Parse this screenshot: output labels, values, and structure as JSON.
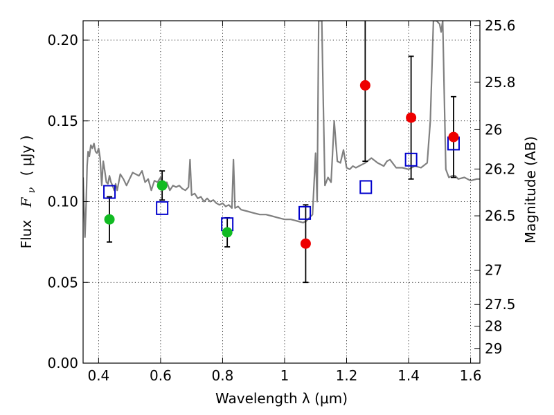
{
  "chart_data": {
    "type": "scatter",
    "xlabel": "Wavelength  λ (μm)",
    "ylabel_left_prefix": "Flux",
    "ylabel_left_symbol": "F",
    "ylabel_left_symbol_sub": "ν",
    "ylabel_left_unit": "( μJy )",
    "ylabel_right": "Magnitude (AB)",
    "xlim": [
      0.35,
      1.63
    ],
    "ylim": [
      0.0,
      0.212
    ],
    "grid": true,
    "x_ticks": [
      {
        "value": 0.4,
        "label": "0.4"
      },
      {
        "value": 0.6,
        "label": "0.6"
      },
      {
        "value": 0.8,
        "label": "0.8"
      },
      {
        "value": 1.0,
        "label": "1"
      },
      {
        "value": 1.2,
        "label": "1.2"
      },
      {
        "value": 1.4,
        "label": "1.4"
      },
      {
        "value": 1.6,
        "label": "1.6"
      }
    ],
    "y_ticks": [
      {
        "value": 0.0,
        "label": "0.00"
      },
      {
        "value": 0.05,
        "label": "0.05"
      },
      {
        "value": 0.1,
        "label": "0.10"
      },
      {
        "value": 0.15,
        "label": "0.15"
      },
      {
        "value": 0.2,
        "label": "0.20"
      }
    ],
    "right_ticks": [
      {
        "label": "25.6",
        "flux": 0.2091
      },
      {
        "label": "25.8",
        "flux": 0.1739
      },
      {
        "label": "26",
        "flux": 0.1446
      },
      {
        "label": "26.2",
        "flux": 0.1202
      },
      {
        "label": "26.5",
        "flux": 0.0912
      },
      {
        "label": "27",
        "flux": 0.0575
      },
      {
        "label": "27.5",
        "flux": 0.0363
      },
      {
        "label": "28",
        "flux": 0.0229
      },
      {
        "label": "29",
        "flux": 0.0091
      }
    ],
    "series": [
      {
        "kind": "line",
        "color": "#808080",
        "x": [
          0.35,
          0.356,
          0.36,
          0.363,
          0.366,
          0.37,
          0.375,
          0.38,
          0.385,
          0.39,
          0.395,
          0.4,
          0.405,
          0.41,
          0.415,
          0.42,
          0.425,
          0.43,
          0.435,
          0.44,
          0.445,
          0.45,
          0.455,
          0.46,
          0.47,
          0.48,
          0.49,
          0.5,
          0.51,
          0.52,
          0.53,
          0.54,
          0.55,
          0.56,
          0.57,
          0.58,
          0.59,
          0.6,
          0.61,
          0.62,
          0.63,
          0.64,
          0.65,
          0.66,
          0.67,
          0.68,
          0.69,
          0.695,
          0.7,
          0.71,
          0.72,
          0.73,
          0.74,
          0.75,
          0.76,
          0.77,
          0.78,
          0.79,
          0.8,
          0.81,
          0.82,
          0.83,
          0.835,
          0.84,
          0.85,
          0.86,
          0.88,
          0.9,
          0.92,
          0.94,
          0.96,
          0.98,
          1.0,
          1.02,
          1.04,
          1.06,
          1.07,
          1.08,
          1.09,
          1.1,
          1.105,
          1.11,
          1.115,
          1.12,
          1.125,
          1.13,
          1.14,
          1.15,
          1.16,
          1.17,
          1.18,
          1.19,
          1.2,
          1.21,
          1.22,
          1.23,
          1.24,
          1.25,
          1.26,
          1.28,
          1.3,
          1.32,
          1.33,
          1.34,
          1.36,
          1.38,
          1.4,
          1.42,
          1.44,
          1.46,
          1.47,
          1.48,
          1.49,
          1.5,
          1.505,
          1.51,
          1.52,
          1.53,
          1.54,
          1.55,
          1.56,
          1.58,
          1.6,
          1.62,
          1.63
        ],
        "y": [
          0.115,
          0.078,
          0.1,
          0.122,
          0.131,
          0.128,
          0.135,
          0.133,
          0.136,
          0.131,
          0.13,
          0.133,
          0.127,
          0.11,
          0.125,
          0.119,
          0.112,
          0.111,
          0.116,
          0.112,
          0.11,
          0.107,
          0.111,
          0.107,
          0.117,
          0.114,
          0.11,
          0.114,
          0.118,
          0.117,
          0.116,
          0.119,
          0.112,
          0.114,
          0.107,
          0.113,
          0.112,
          0.115,
          0.108,
          0.112,
          0.107,
          0.11,
          0.109,
          0.11,
          0.108,
          0.107,
          0.109,
          0.126,
          0.104,
          0.105,
          0.102,
          0.103,
          0.1,
          0.102,
          0.1,
          0.101,
          0.099,
          0.098,
          0.099,
          0.097,
          0.098,
          0.096,
          0.126,
          0.096,
          0.097,
          0.095,
          0.094,
          0.093,
          0.092,
          0.092,
          0.091,
          0.09,
          0.089,
          0.089,
          0.088,
          0.087,
          0.088,
          0.09,
          0.092,
          0.13,
          0.1,
          0.212,
          0.212,
          0.212,
          0.16,
          0.11,
          0.115,
          0.112,
          0.15,
          0.125,
          0.124,
          0.132,
          0.121,
          0.12,
          0.122,
          0.121,
          0.122,
          0.123,
          0.124,
          0.127,
          0.124,
          0.122,
          0.125,
          0.126,
          0.121,
          0.121,
          0.12,
          0.122,
          0.121,
          0.124,
          0.15,
          0.212,
          0.212,
          0.21,
          0.205,
          0.212,
          0.12,
          0.115,
          0.116,
          0.116,
          0.114,
          0.115,
          0.113,
          0.114,
          0.114
        ]
      },
      {
        "kind": "markers",
        "marker": "open-square",
        "color": "#0000cc",
        "x": [
          0.435,
          0.605,
          0.815,
          1.065,
          1.262,
          1.408,
          1.545
        ],
        "y": [
          0.106,
          0.096,
          0.086,
          0.093,
          0.109,
          0.126,
          0.136
        ]
      },
      {
        "kind": "markers",
        "marker": "filled-circle",
        "color": "#11bb22",
        "x": [
          0.435,
          0.605,
          0.815
        ],
        "y": [
          0.089,
          0.11,
          0.081
        ],
        "yerr": [
          0.014,
          0.009,
          0.009
        ]
      },
      {
        "kind": "markers",
        "marker": "filled-circle",
        "color": "#ee0000",
        "x": [
          1.068,
          1.26,
          1.408,
          1.545
        ],
        "y": [
          0.074,
          0.172,
          0.152,
          0.14
        ],
        "yerr_low": [
          0.024,
          0.047,
          0.038,
          0.025
        ],
        "yerr_high": [
          0.024,
          0.047,
          0.038,
          0.025
        ]
      }
    ]
  }
}
